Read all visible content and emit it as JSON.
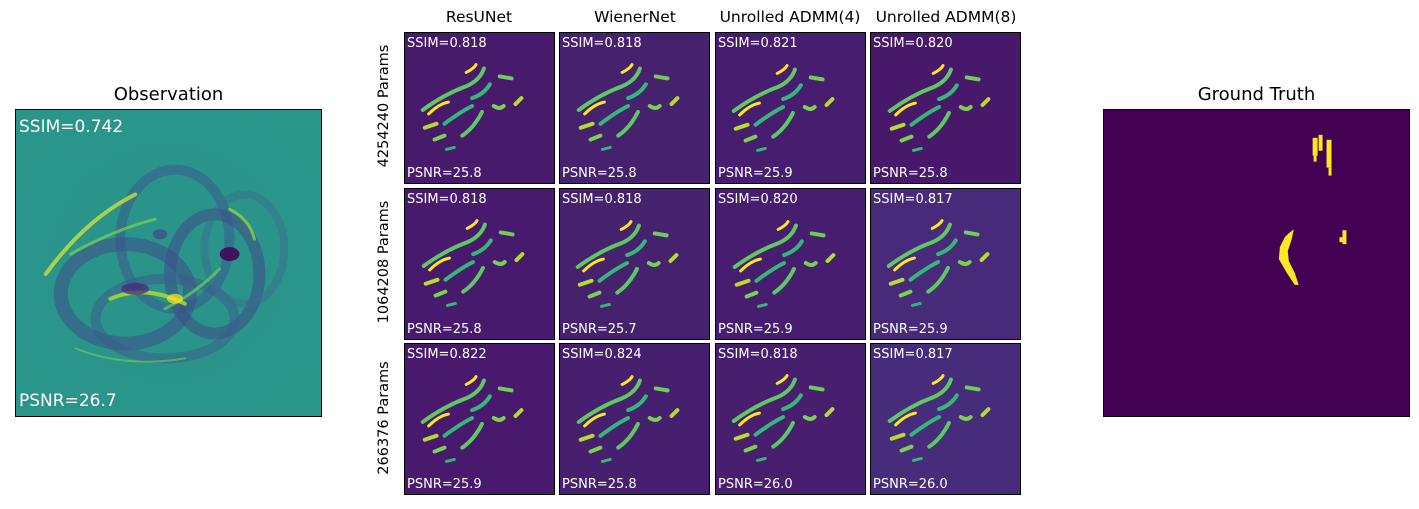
{
  "observation": {
    "title": "Observation",
    "ssim": "SSIM=0.742",
    "psnr": "PSNR=26.7"
  },
  "ground_truth": {
    "title": "Ground Truth"
  },
  "grid": {
    "columns": [
      "ResUNet",
      "WienerNet",
      "Unrolled ADMM(4)",
      "Unrolled ADMM(8)"
    ],
    "rows": [
      {
        "label": "4254240 Params",
        "cells": [
          {
            "ssim": "SSIM=0.818",
            "psnr": "PSNR=25.8"
          },
          {
            "ssim": "SSIM=0.818",
            "psnr": "PSNR=25.8"
          },
          {
            "ssim": "SSIM=0.821",
            "psnr": "PSNR=25.9"
          },
          {
            "ssim": "SSIM=0.820",
            "psnr": "PSNR=25.8"
          }
        ]
      },
      {
        "label": "1064208 Params",
        "cells": [
          {
            "ssim": "SSIM=0.818",
            "psnr": "PSNR=25.8"
          },
          {
            "ssim": "SSIM=0.818",
            "psnr": "PSNR=25.7"
          },
          {
            "ssim": "SSIM=0.820",
            "psnr": "PSNR=25.9"
          },
          {
            "ssim": "SSIM=0.817",
            "psnr": "PSNR=25.9"
          }
        ]
      },
      {
        "label": "266376 Params",
        "cells": [
          {
            "ssim": "SSIM=0.822",
            "psnr": "PSNR=25.9"
          },
          {
            "ssim": "SSIM=0.824",
            "psnr": "PSNR=25.8"
          },
          {
            "ssim": "SSIM=0.818",
            "psnr": "PSNR=26.0"
          },
          {
            "ssim": "SSIM=0.817",
            "psnr": "PSNR=26.0"
          }
        ]
      }
    ]
  },
  "colors": {
    "viridis_dark": "#440154",
    "viridis_teal": "#21918c",
    "viridis_yellow": "#fde725",
    "viridis_green": "#5ec962"
  }
}
